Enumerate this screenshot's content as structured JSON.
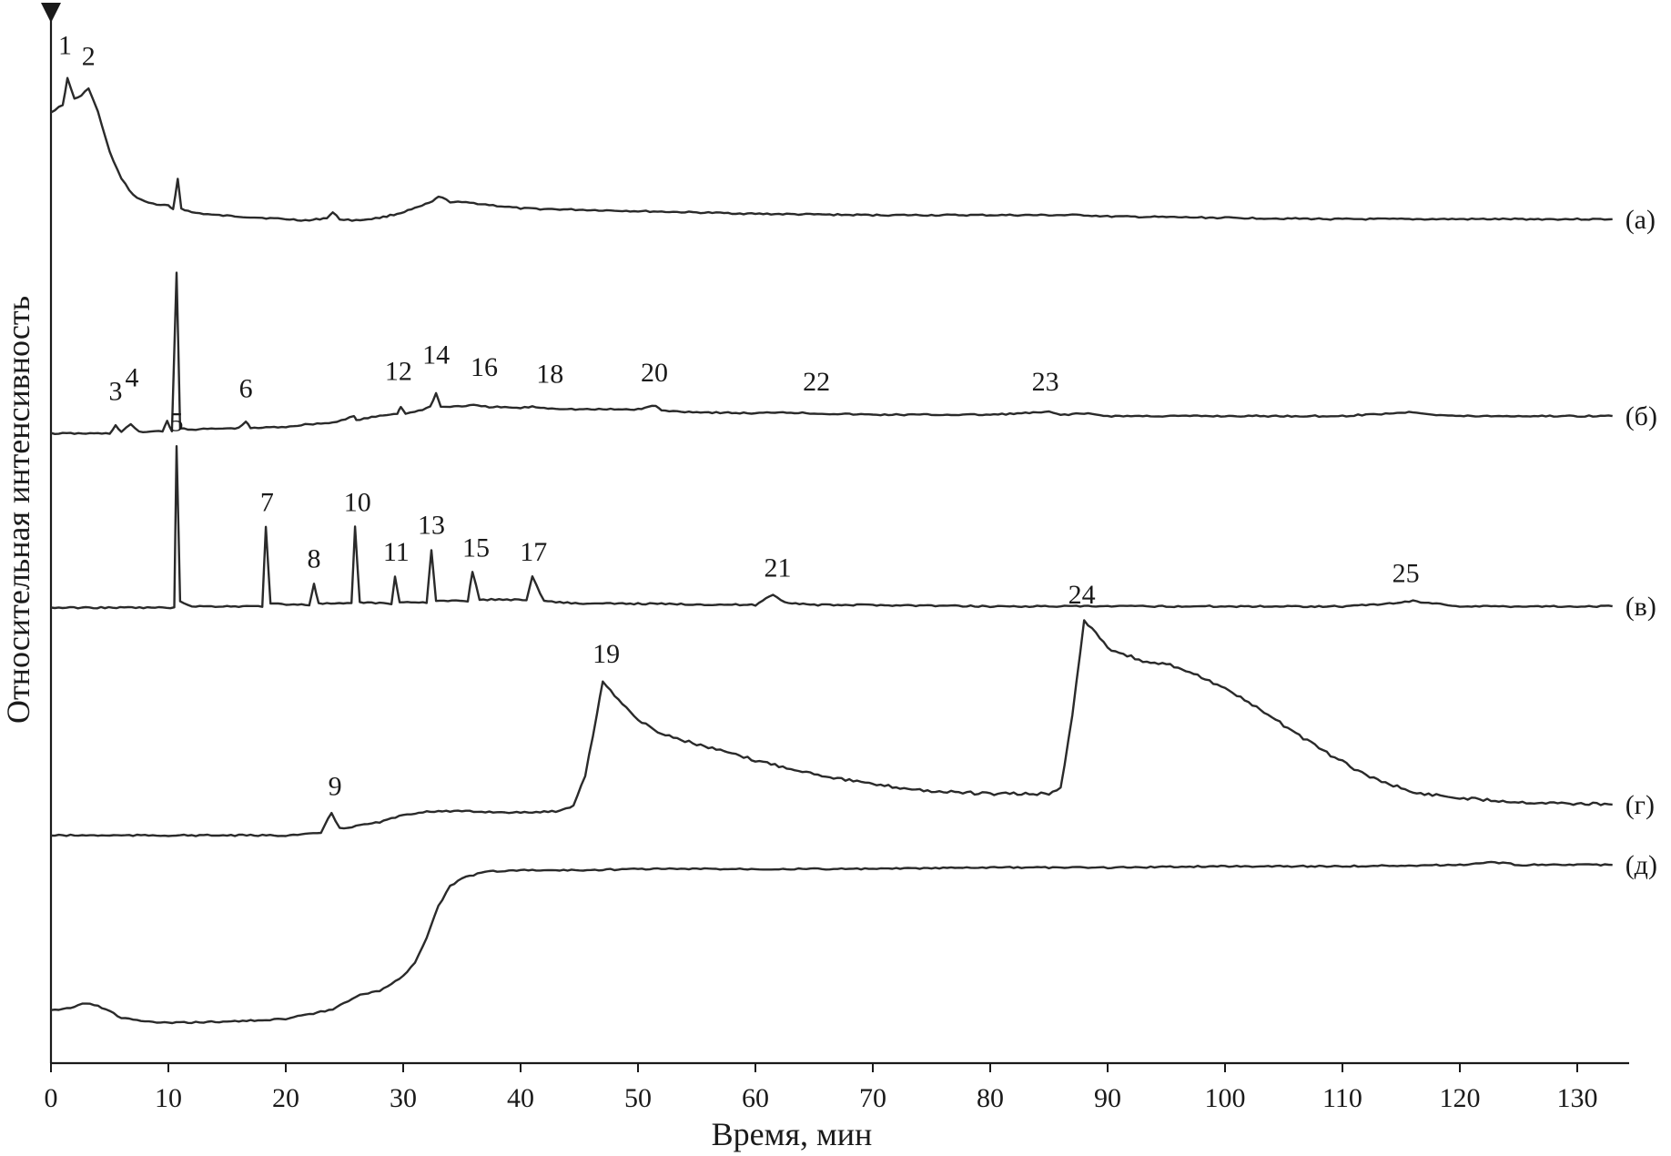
{
  "chart_data": {
    "type": "line",
    "xlabel": "Время, мин",
    "ylabel": "Относительная интенсивность",
    "xlim": [
      0,
      135
    ],
    "x_ticks": [
      0,
      10,
      20,
      30,
      40,
      50,
      60,
      70,
      80,
      90,
      100,
      110,
      120,
      130
    ],
    "y_ticks": [],
    "grid": false,
    "series": [
      {
        "name": "(а)",
        "baseline": 0.63,
        "points": [
          [
            0,
            0.71
          ],
          [
            1,
            0.715
          ],
          [
            1.4,
            0.735
          ],
          [
            2,
            0.72
          ],
          [
            2.6,
            0.722
          ],
          [
            3.2,
            0.728
          ],
          [
            4,
            0.71
          ],
          [
            5,
            0.68
          ],
          [
            6,
            0.66
          ],
          [
            7,
            0.648
          ],
          [
            8,
            0.643
          ],
          [
            9,
            0.641
          ],
          [
            10,
            0.64
          ],
          [
            10.4,
            0.637
          ],
          [
            10.8,
            0.66
          ],
          [
            11.1,
            0.638
          ],
          [
            12,
            0.635
          ],
          [
            14,
            0.633
          ],
          [
            16,
            0.632
          ],
          [
            18,
            0.631
          ],
          [
            20,
            0.63
          ],
          [
            22,
            0.629
          ],
          [
            23.5,
            0.631
          ],
          [
            24,
            0.635
          ],
          [
            24.6,
            0.63
          ],
          [
            26,
            0.629
          ],
          [
            28,
            0.631
          ],
          [
            29.5,
            0.634
          ],
          [
            31,
            0.638
          ],
          [
            32.5,
            0.643
          ],
          [
            33,
            0.647
          ],
          [
            34,
            0.643
          ],
          [
            36,
            0.642
          ],
          [
            38,
            0.64
          ],
          [
            40,
            0.638
          ],
          [
            45,
            0.637
          ],
          [
            50,
            0.636
          ],
          [
            60,
            0.634
          ],
          [
            70,
            0.633
          ],
          [
            80,
            0.633
          ],
          [
            88,
            0.633
          ],
          [
            90,
            0.632
          ],
          [
            100,
            0.631
          ],
          [
            110,
            0.63
          ],
          [
            120,
            0.63
          ],
          [
            133,
            0.63
          ]
        ]
      },
      {
        "name": "(б)",
        "baseline": 0.47,
        "points": [
          [
            0,
            0.47
          ],
          [
            5,
            0.47
          ],
          [
            5.5,
            0.476
          ],
          [
            6,
            0.471
          ],
          [
            6.8,
            0.477
          ],
          [
            7.5,
            0.471
          ],
          [
            9.5,
            0.472
          ],
          [
            9.9,
            0.479
          ],
          [
            10.3,
            0.472
          ],
          [
            10.7,
            0.59
          ],
          [
            11.0,
            0.474
          ],
          [
            12,
            0.473
          ],
          [
            16,
            0.474
          ],
          [
            16.6,
            0.479
          ],
          [
            17,
            0.474
          ],
          [
            20,
            0.475
          ],
          [
            22,
            0.477
          ],
          [
            24,
            0.478
          ],
          [
            25.8,
            0.483
          ],
          [
            26,
            0.48
          ],
          [
            28,
            0.483
          ],
          [
            29.5,
            0.485
          ],
          [
            29.8,
            0.49
          ],
          [
            30.2,
            0.485
          ],
          [
            31,
            0.486
          ],
          [
            32.3,
            0.49
          ],
          [
            32.8,
            0.5
          ],
          [
            33.2,
            0.49
          ],
          [
            34,
            0.49
          ],
          [
            36,
            0.491
          ],
          [
            37,
            0.49
          ],
          [
            40,
            0.489
          ],
          [
            41,
            0.49
          ],
          [
            42,
            0.489
          ],
          [
            45,
            0.488
          ],
          [
            50,
            0.488
          ],
          [
            51.5,
            0.491
          ],
          [
            52,
            0.487
          ],
          [
            55,
            0.486
          ],
          [
            60,
            0.485
          ],
          [
            62,
            0.486
          ],
          [
            65,
            0.485
          ],
          [
            70,
            0.484
          ],
          [
            80,
            0.484
          ],
          [
            85,
            0.486
          ],
          [
            86,
            0.484
          ],
          [
            88,
            0.485
          ],
          [
            90,
            0.483
          ],
          [
            100,
            0.483
          ],
          [
            110,
            0.483
          ],
          [
            114,
            0.485
          ],
          [
            116,
            0.486
          ],
          [
            118,
            0.484
          ],
          [
            120,
            0.483
          ],
          [
            133,
            0.483
          ]
        ]
      },
      {
        "name": "(в)",
        "baseline": 0.34,
        "points": [
          [
            0,
            0.34
          ],
          [
            10.5,
            0.34
          ],
          [
            10.7,
            0.46
          ],
          [
            11.0,
            0.345
          ],
          [
            12,
            0.341
          ],
          [
            18,
            0.341
          ],
          [
            18.3,
            0.4
          ],
          [
            18.7,
            0.343
          ],
          [
            22,
            0.342
          ],
          [
            22.4,
            0.358
          ],
          [
            22.8,
            0.343
          ],
          [
            25.6,
            0.343
          ],
          [
            25.9,
            0.4
          ],
          [
            26.3,
            0.344
          ],
          [
            29,
            0.343
          ],
          [
            29.3,
            0.363
          ],
          [
            29.7,
            0.344
          ],
          [
            32,
            0.344
          ],
          [
            32.4,
            0.383
          ],
          [
            32.8,
            0.345
          ],
          [
            35.5,
            0.345
          ],
          [
            35.9,
            0.367
          ],
          [
            36.5,
            0.346
          ],
          [
            40.5,
            0.346
          ],
          [
            41,
            0.363
          ],
          [
            42,
            0.345
          ],
          [
            45,
            0.343
          ],
          [
            50,
            0.343
          ],
          [
            60,
            0.342
          ],
          [
            61.5,
            0.35
          ],
          [
            62.5,
            0.344
          ],
          [
            65,
            0.342
          ],
          [
            70,
            0.342
          ],
          [
            80,
            0.341
          ],
          [
            90,
            0.341
          ],
          [
            100,
            0.341
          ],
          [
            110,
            0.341
          ],
          [
            114,
            0.343
          ],
          [
            116,
            0.345
          ],
          [
            118,
            0.343
          ],
          [
            120,
            0.341
          ],
          [
            133,
            0.341
          ]
        ]
      },
      {
        "name": "(г)",
        "baseline": 0.17,
        "points": [
          [
            0,
            0.17
          ],
          [
            20,
            0.17
          ],
          [
            22,
            0.171
          ],
          [
            23,
            0.172
          ],
          [
            23.9,
            0.187
          ],
          [
            24.6,
            0.175
          ],
          [
            26,
            0.177
          ],
          [
            28,
            0.18
          ],
          [
            30,
            0.185
          ],
          [
            32,
            0.188
          ],
          [
            35,
            0.188
          ],
          [
            40,
            0.187
          ],
          [
            43,
            0.188
          ],
          [
            44.5,
            0.192
          ],
          [
            45.5,
            0.215
          ],
          [
            46.5,
            0.26
          ],
          [
            47,
            0.285
          ],
          [
            48,
            0.275
          ],
          [
            50,
            0.256
          ],
          [
            52,
            0.246
          ],
          [
            55,
            0.238
          ],
          [
            60,
            0.226
          ],
          [
            65,
            0.216
          ],
          [
            70,
            0.208
          ],
          [
            75,
            0.203
          ],
          [
            80,
            0.201
          ],
          [
            85,
            0.201
          ],
          [
            86,
            0.205
          ],
          [
            87,
            0.26
          ],
          [
            88,
            0.33
          ],
          [
            89,
            0.322
          ],
          [
            90,
            0.31
          ],
          [
            93,
            0.3
          ],
          [
            96,
            0.296
          ],
          [
            100,
            0.28
          ],
          [
            104,
            0.258
          ],
          [
            108,
            0.235
          ],
          [
            112,
            0.215
          ],
          [
            116,
            0.202
          ],
          [
            120,
            0.198
          ],
          [
            125,
            0.195
          ],
          [
            133,
            0.193
          ]
        ]
      },
      {
        "name": "(д)",
        "baseline": 0.0,
        "points": [
          [
            0,
            0.04
          ],
          [
            1,
            0.04
          ],
          [
            3,
            0.045
          ],
          [
            4,
            0.043
          ],
          [
            6,
            0.034
          ],
          [
            8,
            0.031
          ],
          [
            10,
            0.03
          ],
          [
            15,
            0.031
          ],
          [
            20,
            0.033
          ],
          [
            24,
            0.04
          ],
          [
            26,
            0.05
          ],
          [
            28,
            0.054
          ],
          [
            30,
            0.065
          ],
          [
            31,
            0.075
          ],
          [
            32,
            0.094
          ],
          [
            33,
            0.117
          ],
          [
            34,
            0.132
          ],
          [
            35,
            0.138
          ],
          [
            37,
            0.143
          ],
          [
            40,
            0.144
          ],
          [
            45,
            0.144
          ],
          [
            50,
            0.145
          ],
          [
            60,
            0.145
          ],
          [
            70,
            0.145
          ],
          [
            80,
            0.146
          ],
          [
            90,
            0.146
          ],
          [
            100,
            0.147
          ],
          [
            110,
            0.147
          ],
          [
            120,
            0.148
          ],
          [
            123,
            0.15
          ],
          [
            125,
            0.148
          ],
          [
            133,
            0.148
          ]
        ]
      }
    ],
    "trace_labels": [
      "(а)",
      "(б)",
      "(в)",
      "(г)",
      "(д)"
    ],
    "peak_labels": [
      {
        "text": "1",
        "x": 1.2,
        "y": 0.753
      },
      {
        "text": "2",
        "x": 3.2,
        "y": 0.745
      },
      {
        "text": "3",
        "x": 5.5,
        "y": 0.495
      },
      {
        "text": "4",
        "x": 6.9,
        "y": 0.505
      },
      {
        "text": "6",
        "x": 16.6,
        "y": 0.497
      },
      {
        "text": "12",
        "x": 29.6,
        "y": 0.51
      },
      {
        "text": "14",
        "x": 32.8,
        "y": 0.522
      },
      {
        "text": "16",
        "x": 36.9,
        "y": 0.513
      },
      {
        "text": "18",
        "x": 42.5,
        "y": 0.508
      },
      {
        "text": "20",
        "x": 51.4,
        "y": 0.509
      },
      {
        "text": "22",
        "x": 65.2,
        "y": 0.502
      },
      {
        "text": "23",
        "x": 84.7,
        "y": 0.502
      },
      {
        "text": "5",
        "x": 10.7,
        "y": 0.472
      },
      {
        "text": "7",
        "x": 18.4,
        "y": 0.412
      },
      {
        "text": "8",
        "x": 22.4,
        "y": 0.37
      },
      {
        "text": "10",
        "x": 26.1,
        "y": 0.412
      },
      {
        "text": "11",
        "x": 29.4,
        "y": 0.375
      },
      {
        "text": "13",
        "x": 32.4,
        "y": 0.395
      },
      {
        "text": "15",
        "x": 36.2,
        "y": 0.378
      },
      {
        "text": "17",
        "x": 41.1,
        "y": 0.375
      },
      {
        "text": "21",
        "x": 61.9,
        "y": 0.363
      },
      {
        "text": "25",
        "x": 115.4,
        "y": 0.359
      },
      {
        "text": "9",
        "x": 24.2,
        "y": 0.2
      },
      {
        "text": "19",
        "x": 47.3,
        "y": 0.299
      },
      {
        "text": "24",
        "x": 87.8,
        "y": 0.343
      }
    ]
  }
}
